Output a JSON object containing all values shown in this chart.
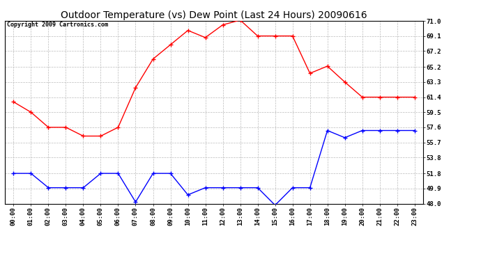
{
  "title": "Outdoor Temperature (vs) Dew Point (Last 24 Hours) 20090616",
  "copyright": "Copyright 2009 Cartronics.com",
  "hours": [
    "00:00",
    "01:00",
    "02:00",
    "03:00",
    "04:00",
    "05:00",
    "06:00",
    "07:00",
    "08:00",
    "09:00",
    "10:00",
    "11:00",
    "12:00",
    "13:00",
    "14:00",
    "15:00",
    "16:00",
    "17:00",
    "18:00",
    "19:00",
    "20:00",
    "21:00",
    "22:00",
    "23:00"
  ],
  "temp": [
    60.8,
    59.5,
    57.6,
    57.6,
    56.5,
    56.5,
    57.6,
    62.6,
    66.2,
    68.0,
    69.8,
    68.9,
    70.5,
    71.1,
    69.1,
    69.1,
    69.1,
    64.4,
    65.3,
    63.3,
    61.4,
    61.4,
    61.4,
    61.4
  ],
  "dew": [
    51.8,
    51.8,
    50.0,
    50.0,
    50.0,
    51.8,
    51.8,
    48.2,
    51.8,
    51.8,
    49.1,
    50.0,
    50.0,
    50.0,
    50.0,
    47.8,
    50.0,
    50.0,
    57.2,
    56.3,
    57.2,
    57.2,
    57.2,
    57.2
  ],
  "temp_color": "red",
  "dew_color": "blue",
  "bg_color": "white",
  "grid_color": "#bbbbbb",
  "ylim": [
    48.0,
    71.0
  ],
  "yticks": [
    48.0,
    49.9,
    51.8,
    53.8,
    55.7,
    57.6,
    59.5,
    61.4,
    63.3,
    65.2,
    67.2,
    69.1,
    71.0
  ],
  "title_fontsize": 10,
  "copyright_fontsize": 6,
  "tick_fontsize": 6.5,
  "marker_size": 4,
  "line_width": 1.0
}
